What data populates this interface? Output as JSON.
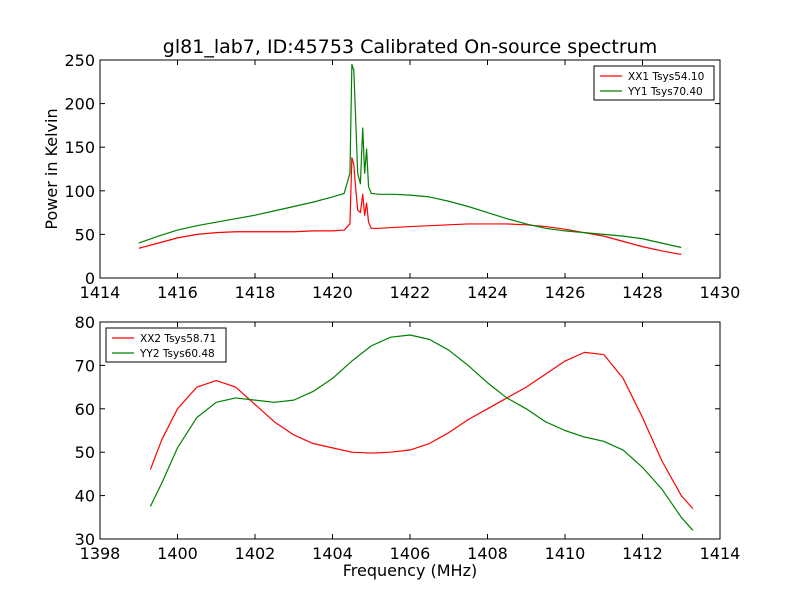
{
  "chart_data": [
    {
      "type": "line",
      "title": "gl81_lab7, ID:45753 Calibrated On-source spectrum",
      "xlabel": "",
      "ylabel": "Power in Kelvin",
      "xlim": [
        1414,
        1430
      ],
      "ylim": [
        0,
        250
      ],
      "xticks": [
        1414,
        1416,
        1418,
        1420,
        1422,
        1424,
        1426,
        1428,
        1430
      ],
      "yticks": [
        0,
        50,
        100,
        150,
        200,
        250
      ],
      "grid": false,
      "legend_position": "top-right",
      "series": [
        {
          "name": "XX1 Tsys54.10",
          "color": "#ff0000",
          "x": [
            1415.0,
            1415.5,
            1416.0,
            1416.5,
            1417.0,
            1417.5,
            1418.0,
            1418.5,
            1419.0,
            1419.5,
            1420.0,
            1420.3,
            1420.45,
            1420.5,
            1420.55,
            1420.6,
            1420.65,
            1420.72,
            1420.78,
            1420.83,
            1420.88,
            1420.93,
            1421.0,
            1421.2,
            1421.6,
            1422.0,
            1422.5,
            1423.0,
            1423.5,
            1424.0,
            1424.5,
            1425.0,
            1425.5,
            1426.0,
            1426.5,
            1427.0,
            1427.5,
            1428.0,
            1428.5,
            1429.0
          ],
          "values": [
            34,
            40,
            46,
            50,
            52,
            53,
            53,
            53,
            53,
            54,
            54,
            55,
            62,
            138,
            130,
            102,
            78,
            75,
            96,
            72,
            86,
            64,
            57,
            57,
            58,
            59,
            60,
            61,
            62,
            62,
            62,
            61,
            59,
            56,
            52,
            48,
            42,
            36,
            31,
            27
          ]
        },
        {
          "name": "YY1 Tsys70.40",
          "color": "#008000",
          "x": [
            1415.0,
            1415.5,
            1416.0,
            1416.5,
            1417.0,
            1417.5,
            1418.0,
            1418.5,
            1419.0,
            1419.5,
            1420.0,
            1420.3,
            1420.45,
            1420.5,
            1420.55,
            1420.6,
            1420.65,
            1420.72,
            1420.78,
            1420.83,
            1420.88,
            1420.93,
            1421.0,
            1421.2,
            1421.6,
            1422.0,
            1422.5,
            1423.0,
            1423.5,
            1424.0,
            1424.5,
            1425.0,
            1425.5,
            1426.0,
            1426.5,
            1427.0,
            1427.5,
            1428.0,
            1428.5,
            1429.0
          ],
          "values": [
            40,
            48,
            55,
            60,
            64,
            68,
            72,
            77,
            82,
            87,
            93,
            97,
            120,
            245,
            238,
            180,
            120,
            108,
            172,
            120,
            148,
            105,
            97,
            96,
            96,
            95,
            93,
            88,
            82,
            75,
            68,
            62,
            57,
            54,
            52,
            50,
            48,
            45,
            40,
            35
          ]
        }
      ]
    },
    {
      "type": "line",
      "title": "",
      "xlabel": "Frequency (MHz)",
      "ylabel": "",
      "xlim": [
        1398,
        1414
      ],
      "ylim": [
        30,
        80
      ],
      "xticks": [
        1398,
        1400,
        1402,
        1404,
        1406,
        1408,
        1410,
        1412,
        1414
      ],
      "yticks": [
        30,
        40,
        50,
        60,
        70,
        80
      ],
      "grid": false,
      "legend_position": "top-left",
      "series": [
        {
          "name": "XX2 Tsys58.71",
          "color": "#ff0000",
          "x": [
            1399.3,
            1399.6,
            1400.0,
            1400.5,
            1401.0,
            1401.5,
            1402.0,
            1402.5,
            1403.0,
            1403.5,
            1404.0,
            1404.5,
            1405.0,
            1405.5,
            1406.0,
            1406.5,
            1407.0,
            1407.5,
            1408.0,
            1408.5,
            1409.0,
            1409.5,
            1410.0,
            1410.5,
            1411.0,
            1411.5,
            1412.0,
            1412.5,
            1413.0,
            1413.3
          ],
          "values": [
            46,
            53,
            60,
            65,
            66.5,
            65,
            61,
            57,
            54,
            52,
            51,
            50,
            49.8,
            50,
            50.5,
            52,
            54.5,
            57.5,
            60,
            62.5,
            65,
            68,
            71,
            73,
            72.5,
            67,
            58,
            48,
            40,
            37
          ]
        },
        {
          "name": "YY2 Tsys60.48",
          "color": "#008000",
          "x": [
            1399.3,
            1399.6,
            1400.0,
            1400.5,
            1401.0,
            1401.5,
            1402.0,
            1402.5,
            1403.0,
            1403.5,
            1404.0,
            1404.5,
            1405.0,
            1405.5,
            1406.0,
            1406.5,
            1407.0,
            1407.5,
            1408.0,
            1408.5,
            1409.0,
            1409.5,
            1410.0,
            1410.5,
            1411.0,
            1411.5,
            1412.0,
            1412.5,
            1413.0,
            1413.3
          ],
          "values": [
            37.5,
            43,
            51,
            58,
            61.5,
            62.5,
            62,
            61.5,
            62,
            64,
            67,
            71,
            74.5,
            76.5,
            77,
            76,
            73.5,
            70,
            66,
            62.5,
            60,
            57,
            55,
            53.5,
            52.5,
            50.5,
            46.5,
            41.5,
            35,
            32
          ]
        }
      ]
    }
  ]
}
